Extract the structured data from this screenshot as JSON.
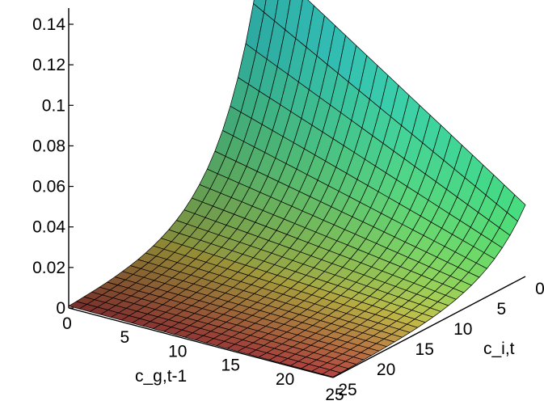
{
  "chart_data": {
    "type": "surface3d",
    "title": "",
    "x_axis": {
      "label": "c_g,t-1",
      "range": [
        0,
        25
      ],
      "ticks": [
        "0",
        "5",
        "10",
        "15",
        "20",
        "25"
      ]
    },
    "y_axis": {
      "label": "c_i,t",
      "range": [
        0,
        25
      ],
      "ticks": [
        "0",
        "5",
        "10",
        "15",
        "20",
        "25"
      ]
    },
    "z_axis": {
      "label": "",
      "range": [
        0,
        0.15
      ],
      "ticks": [
        "0",
        "0.02",
        "0.04",
        "0.06",
        "0.08",
        "0.1",
        "0.12",
        "0.14"
      ]
    },
    "surface": {
      "grid_x": [
        0,
        25
      ],
      "grid_y": [
        0,
        25
      ],
      "grid_steps": 25,
      "peak_value": 0.123,
      "peak_at": {
        "x": 0,
        "y": 0
      },
      "corner_values": {
        "x0_y0": 0.123,
        "x25_y0": 0.0375,
        "x0_y25": 0.0,
        "x25_y25": 0.0
      }
    },
    "colors": {
      "low": "#d9534f",
      "mid": "#c8c84a",
      "high": "#35c9c0",
      "edge_green": "#4ee85a"
    }
  }
}
